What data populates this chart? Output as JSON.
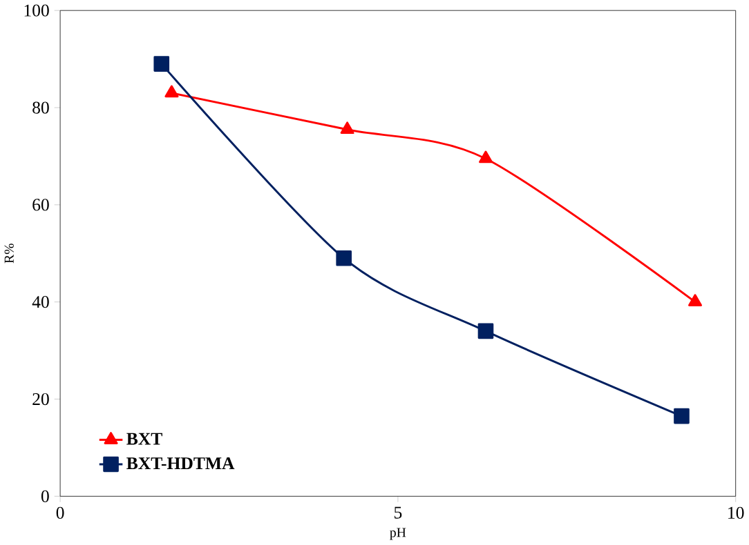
{
  "chart_data": {
    "type": "line",
    "xlabel": "pH",
    "ylabel": "R%",
    "series": [
      {
        "name": "BXT",
        "color": "#ff0000",
        "marker": "triangle",
        "x": [
          1.65,
          4.25,
          6.3,
          9.4
        ],
        "values": [
          83,
          75.5,
          69.5,
          40
        ]
      },
      {
        "name": "BXT-HDTMA",
        "color": "#002060",
        "marker": "square",
        "x": [
          1.5,
          4.2,
          6.3,
          9.2
        ],
        "values": [
          89,
          49,
          34,
          16.5
        ]
      }
    ],
    "xlim": [
      0,
      10
    ],
    "xticks": [
      0,
      5,
      10
    ],
    "ylim": [
      0,
      100
    ],
    "yticks": [
      0,
      20,
      40,
      60,
      80,
      100
    ],
    "grid": false,
    "legend": "bottom left",
    "line_style": "solid"
  }
}
